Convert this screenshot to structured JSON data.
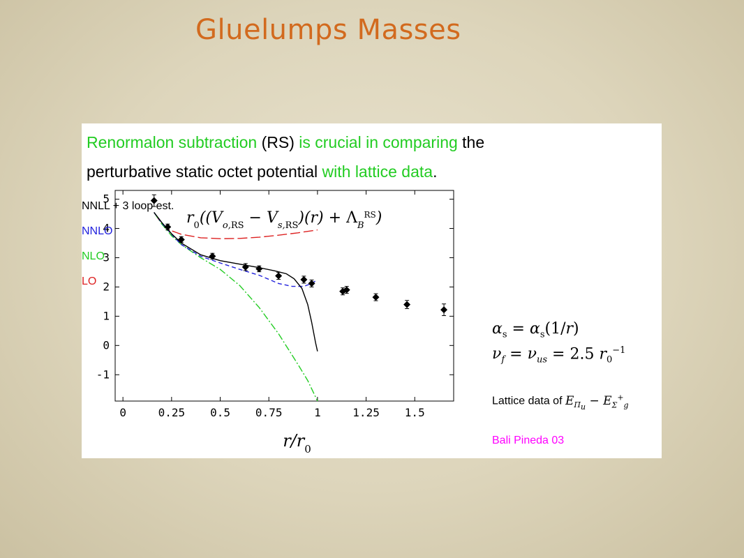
{
  "slide": {
    "title": "Gluelumps Masses"
  },
  "headline": {
    "part1": "Renormalon subtraction ",
    "part2": "(RS)",
    "part3": " is crucial in comparing",
    "part4": " the",
    "part5": "perturbative static octet potential ",
    "part6": "with lattice data",
    "part7": "."
  },
  "legend": {
    "items": [
      {
        "label": "NNLL + 3 loop est.",
        "color": "#000000"
      },
      {
        "label": "NNLO",
        "color": "#2222dd"
      },
      {
        "label": "NLO",
        "color": "#22cc22"
      },
      {
        "label": "LO",
        "color": "#dd2222"
      }
    ],
    "lattice_label": "Lattice data of",
    "reference": "Bali Pineda 03"
  },
  "chart_data": {
    "type": "line",
    "title": "r0((Vo,RS − Vs,RS)(r) + Λ_B^RS)",
    "xlabel": "r/r0",
    "ylabel": "",
    "xlim": [
      -0.04,
      1.7
    ],
    "ylim": [
      -1.9,
      5.3
    ],
    "xticks": [
      "0",
      "0.25",
      "0.5",
      "0.75",
      "1",
      "1.25",
      "1.5"
    ],
    "xtick_values": [
      0,
      0.25,
      0.5,
      0.75,
      1,
      1.25,
      1.5
    ],
    "yticks": [
      "5",
      "4",
      "3",
      "2",
      "1",
      "0",
      "-1"
    ],
    "ytick_values": [
      5,
      4,
      3,
      2,
      1,
      0,
      -1
    ],
    "series": [
      {
        "name": "NNLL + 3 loop est.",
        "color": "#000000",
        "dash": "",
        "x": [
          0.16,
          0.2,
          0.25,
          0.3,
          0.4,
          0.5,
          0.6,
          0.7,
          0.78,
          0.84,
          0.88,
          0.92,
          0.95,
          0.97,
          0.99,
          1.0
        ],
        "y": [
          4.55,
          4.2,
          3.82,
          3.5,
          3.1,
          2.9,
          2.78,
          2.66,
          2.55,
          2.45,
          2.28,
          1.95,
          1.4,
          0.8,
          0.1,
          -0.2
        ]
      },
      {
        "name": "NNLO",
        "color": "#2222dd",
        "dash": "6,4",
        "x": [
          0.16,
          0.2,
          0.25,
          0.3,
          0.4,
          0.5,
          0.6,
          0.7,
          0.8,
          0.87,
          0.93,
          0.97,
          1.0
        ],
        "y": [
          4.55,
          4.18,
          3.8,
          3.45,
          3.05,
          2.82,
          2.6,
          2.4,
          2.12,
          2.02,
          2.02,
          2.12,
          2.25
        ]
      },
      {
        "name": "NLO",
        "color": "#22cc22",
        "dash": "10,3,2,3",
        "x": [
          0.16,
          0.2,
          0.25,
          0.3,
          0.4,
          0.5,
          0.6,
          0.7,
          0.8,
          0.9,
          0.95,
          1.0
        ],
        "y": [
          4.55,
          4.15,
          3.75,
          3.45,
          3.0,
          2.6,
          2.05,
          1.3,
          0.4,
          -0.65,
          -1.2,
          -1.9
        ]
      },
      {
        "name": "LO",
        "color": "#dd2222",
        "dash": "14,5",
        "x": [
          0.16,
          0.2,
          0.25,
          0.3,
          0.4,
          0.5,
          0.6,
          0.7,
          0.8,
          0.9,
          1.0
        ],
        "y": [
          4.55,
          4.15,
          3.92,
          3.8,
          3.68,
          3.65,
          3.66,
          3.7,
          3.77,
          3.85,
          3.95
        ]
      }
    ],
    "points": {
      "name": "Lattice data",
      "x": [
        0.16,
        0.23,
        0.3,
        0.46,
        0.63,
        0.7,
        0.8,
        0.93,
        0.97,
        1.13,
        1.15,
        1.3,
        1.46,
        1.65
      ],
      "y": [
        4.95,
        4.05,
        3.62,
        3.05,
        2.68,
        2.62,
        2.38,
        2.25,
        2.12,
        1.85,
        1.9,
        1.65,
        1.4,
        1.22
      ],
      "err": [
        0.2,
        0.1,
        0.1,
        0.1,
        0.12,
        0.1,
        0.12,
        0.12,
        0.12,
        0.12,
        0.12,
        0.12,
        0.14,
        0.2
      ]
    }
  }
}
